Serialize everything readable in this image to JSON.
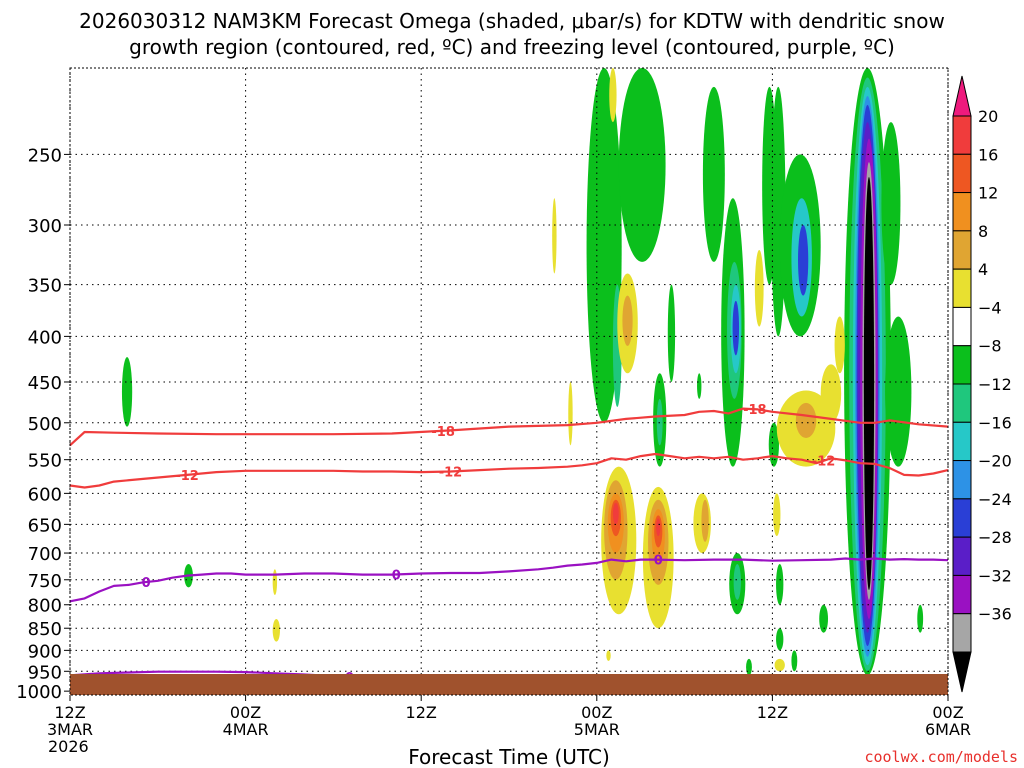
{
  "chart_data": {
    "type": "heatmap",
    "title_line1": "2026030312 NAM3KM Forecast Omega (shaded, μbar/s) for KDTW with dendritic snow",
    "title_line2": "growth region (contoured, red, ºC) and freezing level (contoured, purple, ºC)",
    "xlabel": "Forecast Time (UTC)",
    "ylabel": "",
    "credit": "coolwx.com/models",
    "x_ticks": [
      {
        "hour": 0,
        "lines": [
          "12Z",
          "3MAR",
          "2026"
        ]
      },
      {
        "hour": 12,
        "lines": [
          "00Z",
          "4MAR"
        ]
      },
      {
        "hour": 24,
        "lines": [
          "12Z"
        ]
      },
      {
        "hour": 36,
        "lines": [
          "00Z",
          "5MAR"
        ]
      },
      {
        "hour": 48,
        "lines": [
          "12Z"
        ]
      },
      {
        "hour": 60,
        "lines": [
          "00Z",
          "6MAR"
        ]
      }
    ],
    "x_range": [
      0,
      60
    ],
    "y_ticks": [
      250,
      300,
      350,
      400,
      450,
      500,
      550,
      600,
      650,
      700,
      750,
      800,
      850,
      900,
      950,
      1000
    ],
    "y_range": [
      200,
      1010
    ],
    "y_scale": "log-pressure (reversed)",
    "grid": true,
    "colorbar": {
      "labels": [
        "20",
        "16",
        "12",
        "8",
        "4",
        "−4",
        "−8",
        "−12",
        "−16",
        "−20",
        "−24",
        "−28",
        "−32",
        "−36"
      ],
      "colors": [
        "#ee1a7d",
        "#f03c3c",
        "#ee5722",
        "#f0901f",
        "#e0a532",
        "#e8e030",
        "#ffffff",
        "#0bbf1c",
        "#1fc77d",
        "#26c8c8",
        "#2d92e6",
        "#2a3fd6",
        "#5a1ec8",
        "#9a11c2",
        "#a6a6a6",
        "#000000"
      ]
    },
    "omega_colors": {
      "pos4": "#e8e030",
      "pos8": "#e0a532",
      "pos12": "#f0901f",
      "pos16": "#ee5722",
      "pos20": "#f03c3c",
      "neg4": "#0bbf1c",
      "neg8": "#1fc77d",
      "neg12": "#26c8c8",
      "neg16": "#2d92e6",
      "neg20": "#2a3fd6",
      "neg24": "#5a1ec8",
      "neg28": "#9a11c2",
      "neg32": "#a6a6a6",
      "neg36": "#000000"
    },
    "contour_labels": [
      "-18",
      "-12",
      "0"
    ],
    "contours": [
      {
        "name": "-18",
        "color": "#f03c3c",
        "points": [
          [
            0,
            530
          ],
          [
            1,
            512
          ],
          [
            3,
            513
          ],
          [
            6,
            514
          ],
          [
            10,
            515
          ],
          [
            14,
            515
          ],
          [
            18,
            515
          ],
          [
            22,
            514
          ],
          [
            26,
            510
          ],
          [
            30,
            505
          ],
          [
            34,
            503
          ],
          [
            36,
            500
          ],
          [
            38,
            495
          ],
          [
            40,
            492
          ],
          [
            42,
            490
          ],
          [
            43,
            486
          ],
          [
            44,
            485
          ],
          [
            45,
            488
          ],
          [
            46,
            482
          ],
          [
            47,
            483
          ],
          [
            48,
            486
          ],
          [
            50,
            490
          ],
          [
            52,
            495
          ],
          [
            54,
            500
          ],
          [
            55,
            500
          ],
          [
            56,
            497
          ],
          [
            58,
            502
          ],
          [
            60,
            505
          ]
        ],
        "label_hours": [
          25.5,
          46.8
        ]
      },
      {
        "name": "-12",
        "color": "#f03c3c",
        "points": [
          [
            0,
            588
          ],
          [
            1,
            591
          ],
          [
            2,
            588
          ],
          [
            3,
            582
          ],
          [
            5,
            578
          ],
          [
            8,
            572
          ],
          [
            10,
            568
          ],
          [
            12,
            566
          ],
          [
            14,
            566
          ],
          [
            16,
            566
          ],
          [
            18,
            566
          ],
          [
            20,
            567
          ],
          [
            22,
            567
          ],
          [
            24,
            568
          ],
          [
            26,
            567
          ],
          [
            28,
            565
          ],
          [
            30,
            563
          ],
          [
            32,
            562
          ],
          [
            34,
            560
          ],
          [
            35,
            558
          ],
          [
            36,
            555
          ],
          [
            37,
            548
          ],
          [
            38,
            550
          ],
          [
            39,
            545
          ],
          [
            40,
            542
          ],
          [
            41,
            545
          ],
          [
            42,
            548
          ],
          [
            43,
            546
          ],
          [
            44,
            548
          ],
          [
            45,
            546
          ],
          [
            46,
            550
          ],
          [
            47,
            548
          ],
          [
            48,
            545
          ],
          [
            49,
            548
          ],
          [
            50,
            550
          ],
          [
            51,
            555
          ],
          [
            52,
            548
          ],
          [
            53,
            551
          ],
          [
            54,
            555
          ],
          [
            55,
            556
          ],
          [
            56,
            562
          ],
          [
            57,
            572
          ],
          [
            58,
            573
          ],
          [
            59,
            570
          ],
          [
            60,
            565
          ]
        ],
        "label_hours": [
          8,
          26,
          51.5
        ]
      },
      {
        "name": "0",
        "color": "#9a11c2",
        "points": [
          [
            0,
            793
          ],
          [
            1,
            787
          ],
          [
            2,
            773
          ],
          [
            3,
            762
          ],
          [
            4,
            760
          ],
          [
            5,
            755
          ],
          [
            6,
            752
          ],
          [
            7,
            746
          ],
          [
            8,
            742
          ],
          [
            9,
            740
          ],
          [
            10,
            738
          ],
          [
            11,
            738
          ],
          [
            12,
            740
          ],
          [
            13,
            740
          ],
          [
            14,
            740
          ],
          [
            16,
            738
          ],
          [
            18,
            738
          ],
          [
            20,
            740
          ],
          [
            22,
            740
          ],
          [
            24,
            738
          ],
          [
            26,
            737
          ],
          [
            28,
            737
          ],
          [
            30,
            734
          ],
          [
            32,
            730
          ],
          [
            33,
            727
          ],
          [
            34,
            723
          ],
          [
            35,
            721
          ],
          [
            36,
            718
          ],
          [
            37,
            712
          ],
          [
            38,
            715
          ],
          [
            39,
            712
          ],
          [
            40,
            712
          ],
          [
            42,
            713
          ],
          [
            44,
            712
          ],
          [
            46,
            712
          ],
          [
            48,
            714
          ],
          [
            50,
            713
          ],
          [
            52,
            712
          ],
          [
            53,
            710
          ],
          [
            54,
            712
          ],
          [
            55,
            710
          ],
          [
            56,
            712
          ],
          [
            57,
            711
          ],
          [
            58,
            712
          ],
          [
            59,
            712
          ],
          [
            60,
            713
          ]
        ],
        "label_hours": [
          5.2,
          22.3,
          40.2
        ]
      },
      {
        "name": "0",
        "color": "#9a11c2",
        "points": [
          [
            0,
            960
          ],
          [
            2,
            955
          ],
          [
            4,
            953
          ],
          [
            6,
            951
          ],
          [
            8,
            951
          ],
          [
            10,
            951
          ],
          [
            12,
            952
          ],
          [
            14,
            955
          ],
          [
            16,
            958
          ],
          [
            18,
            962
          ],
          [
            20,
            966
          ],
          [
            22,
            968
          ],
          [
            24,
            970
          ],
          [
            26,
            968
          ],
          [
            28,
            964
          ],
          [
            30,
            960
          ],
          [
            32,
            960
          ],
          [
            31.5,
            964
          ],
          [
            30,
            968
          ],
          [
            28,
            972
          ],
          [
            26,
            975
          ],
          [
            25,
            976
          ],
          [
            24,
            977
          ],
          [
            22,
            978
          ],
          [
            20,
            978
          ],
          [
            19,
            975
          ]
        ],
        "label_hours": [
          19.1
        ]
      }
    ],
    "omega_blobs": [
      {
        "cx": 3.9,
        "p1": 422,
        "p2": 505,
        "hw": 0.35,
        "level": "neg4"
      },
      {
        "cx": 8.1,
        "p1": 720,
        "p2": 765,
        "hw": 0.3,
        "level": "neg4"
      },
      {
        "cx": 14.0,
        "p1": 730,
        "p2": 780,
        "hw": 0.15,
        "level": "pos4"
      },
      {
        "cx": 14.1,
        "p1": 830,
        "p2": 880,
        "hw": 0.25,
        "level": "pos4"
      },
      {
        "cx": 33.1,
        "p1": 280,
        "p2": 340,
        "hw": 0.15,
        "level": "pos4"
      },
      {
        "cx": 34.2,
        "p1": 450,
        "p2": 530,
        "hw": 0.15,
        "level": "pos4"
      },
      {
        "cx": 36.5,
        "p1": 200,
        "p2": 500,
        "hw": 1.2,
        "level": "neg4"
      },
      {
        "cx": 37.4,
        "p1": 350,
        "p2": 480,
        "hw": 0.3,
        "level": "neg8"
      },
      {
        "cx": 37.1,
        "p1": 200,
        "p2": 230,
        "hw": 0.25,
        "level": "pos4"
      },
      {
        "cx": 37.5,
        "p1": 560,
        "p2": 820,
        "hw": 1.2,
        "level": "pos4"
      },
      {
        "cx": 37.3,
        "p1": 580,
        "p2": 750,
        "hw": 0.8,
        "level": "pos8"
      },
      {
        "cx": 37.3,
        "p1": 600,
        "p2": 700,
        "hw": 0.55,
        "level": "pos12"
      },
      {
        "cx": 37.3,
        "p1": 610,
        "p2": 670,
        "hw": 0.35,
        "level": "pos16"
      },
      {
        "cx": 37.3,
        "p1": 615,
        "p2": 650,
        "hw": 0.2,
        "level": "pos20"
      },
      {
        "cx": 38.1,
        "p1": 340,
        "p2": 440,
        "hw": 0.7,
        "level": "pos4"
      },
      {
        "cx": 38.1,
        "p1": 360,
        "p2": 410,
        "hw": 0.35,
        "level": "pos8"
      },
      {
        "cx": 39.1,
        "p1": 200,
        "p2": 330,
        "hw": 1.6,
        "level": "neg4"
      },
      {
        "cx": 40.3,
        "p1": 440,
        "p2": 560,
        "hw": 0.45,
        "level": "neg4"
      },
      {
        "cx": 40.3,
        "p1": 470,
        "p2": 530,
        "hw": 0.2,
        "level": "neg8"
      },
      {
        "cx": 40.2,
        "p1": 590,
        "p2": 850,
        "hw": 1.05,
        "level": "pos4"
      },
      {
        "cx": 40.2,
        "p1": 610,
        "p2": 760,
        "hw": 0.7,
        "level": "pos8"
      },
      {
        "cx": 40.2,
        "p1": 625,
        "p2": 720,
        "hw": 0.45,
        "level": "pos12"
      },
      {
        "cx": 40.2,
        "p1": 635,
        "p2": 690,
        "hw": 0.28,
        "level": "pos16"
      },
      {
        "cx": 40.2,
        "p1": 640,
        "p2": 670,
        "hw": 0.15,
        "level": "pos20"
      },
      {
        "cx": 41.1,
        "p1": 350,
        "p2": 450,
        "hw": 0.25,
        "level": "neg4"
      },
      {
        "cx": 43.0,
        "p1": 440,
        "p2": 470,
        "hw": 0.15,
        "level": "neg4"
      },
      {
        "cx": 43.2,
        "p1": 600,
        "p2": 700,
        "hw": 0.6,
        "level": "pos4"
      },
      {
        "cx": 43.4,
        "p1": 610,
        "p2": 680,
        "hw": 0.25,
        "level": "pos8"
      },
      {
        "cx": 44.0,
        "p1": 210,
        "p2": 330,
        "hw": 0.75,
        "level": "neg4"
      },
      {
        "cx": 45.3,
        "p1": 280,
        "p2": 560,
        "hw": 0.8,
        "level": "neg4"
      },
      {
        "cx": 45.4,
        "p1": 330,
        "p2": 470,
        "hw": 0.5,
        "level": "neg8"
      },
      {
        "cx": 45.5,
        "p1": 350,
        "p2": 440,
        "hw": 0.35,
        "level": "neg12"
      },
      {
        "cx": 45.5,
        "p1": 365,
        "p2": 420,
        "hw": 0.22,
        "level": "neg20"
      },
      {
        "cx": 45.6,
        "p1": 700,
        "p2": 820,
        "hw": 0.55,
        "level": "neg4"
      },
      {
        "cx": 45.6,
        "p1": 720,
        "p2": 790,
        "hw": 0.25,
        "level": "neg8"
      },
      {
        "cx": 46.4,
        "p1": 920,
        "p2": 960,
        "hw": 0.2,
        "level": "neg4"
      },
      {
        "cx": 47.1,
        "p1": 320,
        "p2": 390,
        "hw": 0.3,
        "level": "pos4"
      },
      {
        "cx": 47.8,
        "p1": 210,
        "p2": 350,
        "hw": 0.5,
        "level": "neg4"
      },
      {
        "cx": 48.4,
        "p1": 210,
        "p2": 400,
        "hw": 0.5,
        "level": "neg4"
      },
      {
        "cx": 48.1,
        "p1": 500,
        "p2": 560,
        "hw": 0.35,
        "level": "neg4"
      },
      {
        "cx": 48.3,
        "p1": 600,
        "p2": 670,
        "hw": 0.25,
        "level": "pos4"
      },
      {
        "cx": 48.5,
        "p1": 720,
        "p2": 800,
        "hw": 0.25,
        "level": "neg4"
      },
      {
        "cx": 48.5,
        "p1": 850,
        "p2": 900,
        "hw": 0.25,
        "level": "neg4"
      },
      {
        "cx": 49.9,
        "p1": 250,
        "p2": 400,
        "hw": 1.4,
        "level": "neg4"
      },
      {
        "cx": 50.0,
        "p1": 280,
        "p2": 380,
        "hw": 0.7,
        "level": "neg12"
      },
      {
        "cx": 50.1,
        "p1": 300,
        "p2": 360,
        "hw": 0.35,
        "level": "neg20"
      },
      {
        "cx": 50.3,
        "p1": 460,
        "p2": 560,
        "hw": 2.0,
        "level": "pos4"
      },
      {
        "cx": 50.3,
        "p1": 475,
        "p2": 520,
        "hw": 0.7,
        "level": "pos8"
      },
      {
        "cx": 51.5,
        "p1": 800,
        "p2": 860,
        "hw": 0.3,
        "level": "neg4"
      },
      {
        "cx": 52.0,
        "p1": 430,
        "p2": 500,
        "hw": 0.7,
        "level": "pos4"
      },
      {
        "cx": 54.5,
        "p1": 200,
        "p2": 960,
        "hw": 1.6,
        "level": "neg4"
      },
      {
        "cx": 54.5,
        "p1": 205,
        "p2": 950,
        "hw": 1.25,
        "level": "neg8"
      },
      {
        "cx": 54.5,
        "p1": 210,
        "p2": 935,
        "hw": 1.0,
        "level": "neg12"
      },
      {
        "cx": 54.5,
        "p1": 215,
        "p2": 915,
        "hw": 0.85,
        "level": "neg16"
      },
      {
        "cx": 54.5,
        "p1": 220,
        "p2": 890,
        "hw": 0.75,
        "level": "neg20"
      },
      {
        "cx": 54.5,
        "p1": 230,
        "p2": 860,
        "hw": 0.68,
        "level": "neg24"
      },
      {
        "cx": 54.6,
        "p1": 240,
        "p2": 830,
        "hw": 0.6,
        "level": "neg28"
      },
      {
        "cx": 54.6,
        "p1": 255,
        "p2": 790,
        "hw": 0.45,
        "level": "neg32"
      },
      {
        "cx": 54.6,
        "p1": 265,
        "p2": 770,
        "hw": 0.35,
        "level": "neg36"
      },
      {
        "cx": 56.1,
        "p1": 230,
        "p2": 350,
        "hw": 0.65,
        "level": "neg4"
      },
      {
        "cx": 56.6,
        "p1": 380,
        "p2": 560,
        "hw": 0.9,
        "level": "neg4"
      },
      {
        "cx": 58.1,
        "p1": 800,
        "p2": 860,
        "hw": 0.2,
        "level": "neg4"
      },
      {
        "cx": 52.6,
        "p1": 380,
        "p2": 440,
        "hw": 0.35,
        "level": "pos4"
      },
      {
        "cx": 36.8,
        "p1": 900,
        "p2": 925,
        "hw": 0.15,
        "level": "pos4"
      },
      {
        "cx": 48.5,
        "p1": 920,
        "p2": 950,
        "hw": 0.35,
        "level": "pos4"
      },
      {
        "cx": 49.5,
        "p1": 900,
        "p2": 950,
        "hw": 0.2,
        "level": "neg4"
      }
    ],
    "ground": {
      "color": "#a0522d",
      "p": 1000
    }
  }
}
